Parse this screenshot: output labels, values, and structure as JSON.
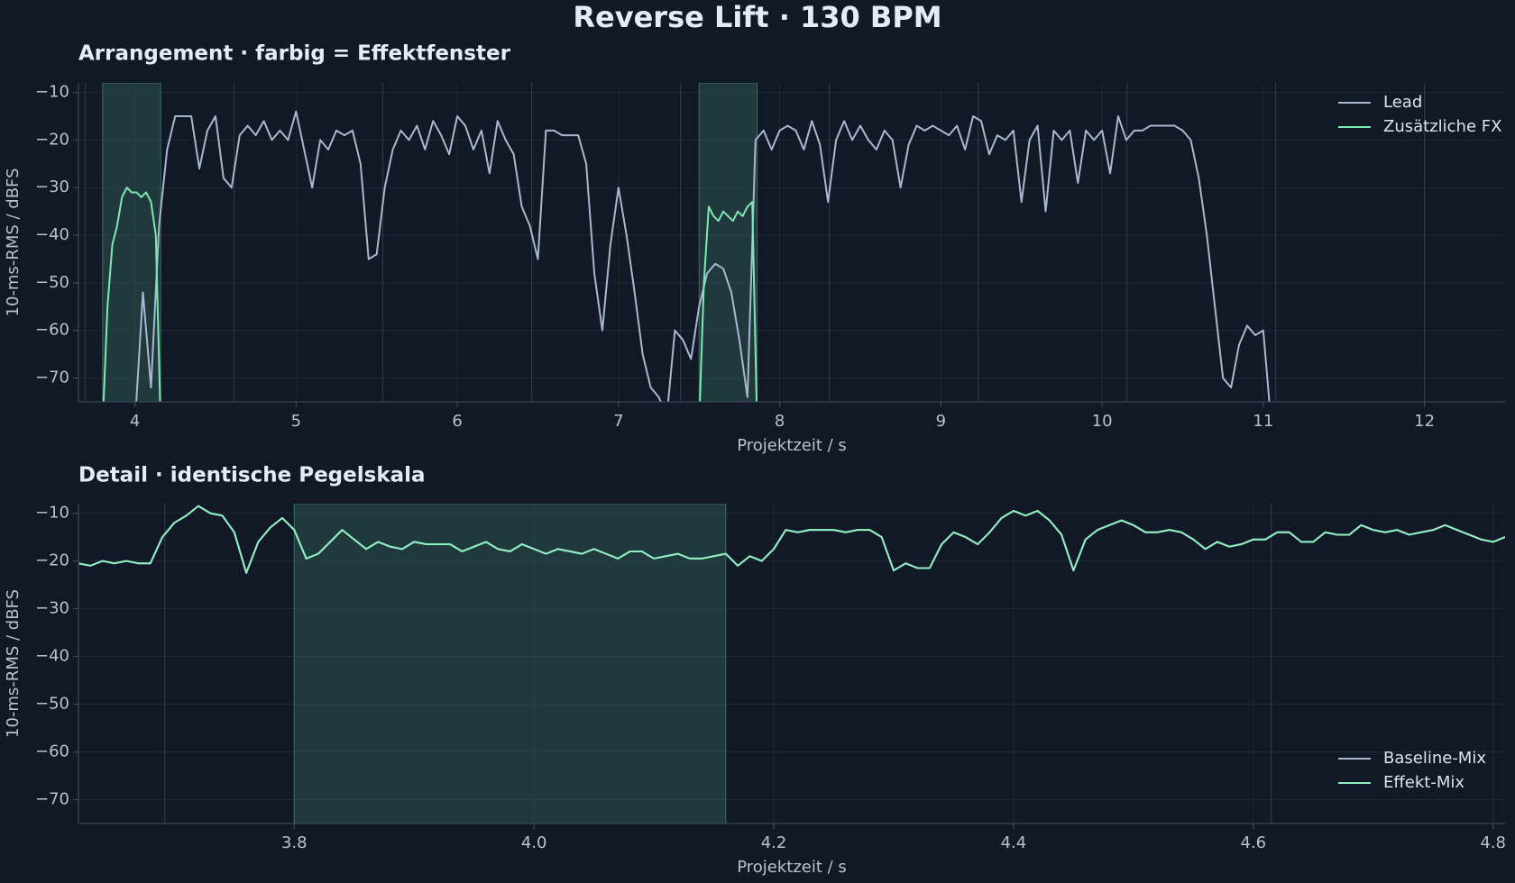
{
  "title": "Reverse Lift · 130 BPM",
  "chart_data": [
    {
      "type": "line",
      "title": "Arrangement · farbig = Effektfenster",
      "xlabel": "Projektzeit / s",
      "ylabel": "10-ms-RMS / dBFS",
      "xlim": [
        3.65,
        12.5
      ],
      "ylim": [
        -75,
        -8
      ],
      "xticks": [
        4,
        5,
        6,
        7,
        8,
        9,
        10,
        11,
        12
      ],
      "yticks": [
        {
          "value": -70,
          "label": "−70"
        },
        {
          "value": -60,
          "label": "−60"
        },
        {
          "value": -50,
          "label": "−50"
        },
        {
          "value": -40,
          "label": "−40"
        },
        {
          "value": -30,
          "label": "−30"
        },
        {
          "value": -20,
          "label": "−20"
        },
        {
          "value": -10,
          "label": "−10"
        }
      ],
      "grid": true,
      "legend": "upper right",
      "windows": [
        [
          3.8,
          4.16
        ],
        [
          7.5,
          7.86
        ]
      ],
      "beat_lines": [
        3.692,
        4.615,
        5.538,
        6.462,
        7.385,
        8.308,
        9.231,
        10.154,
        11.077,
        12.0
      ],
      "series": [
        {
          "name": "Lead",
          "color": "#a9b8cf",
          "x": [
            4,
            4.05,
            4.1,
            4.15,
            4.2,
            4.25,
            4.3,
            4.35,
            4.4,
            4.45,
            4.5,
            4.55,
            4.6,
            4.65,
            4.7,
            4.75,
            4.8,
            4.85,
            4.9,
            4.95,
            5,
            5.05,
            5.1,
            5.15,
            5.2,
            5.25,
            5.3,
            5.35,
            5.4,
            5.45,
            5.5,
            5.55,
            5.6,
            5.65,
            5.7,
            5.75,
            5.8,
            5.85,
            5.9,
            5.95,
            6,
            6.05,
            6.1,
            6.15,
            6.2,
            6.25,
            6.3,
            6.35,
            6.4,
            6.45,
            6.5,
            6.55,
            6.6,
            6.65,
            6.7,
            6.75,
            6.8,
            6.85,
            6.9,
            6.95,
            7,
            7.05,
            7.1,
            7.15,
            7.2,
            7.25,
            7.3,
            7.35,
            7.4,
            7.45,
            7.5,
            7.55,
            7.6,
            7.65,
            7.7,
            7.75,
            7.8,
            7.85,
            7.9,
            7.95,
            8,
            8.05,
            8.1,
            8.15,
            8.2,
            8.25,
            8.3,
            8.35,
            8.4,
            8.45,
            8.5,
            8.55,
            8.6,
            8.65,
            8.7,
            8.75,
            8.8,
            8.85,
            8.9,
            8.95,
            9,
            9.05,
            9.1,
            9.15,
            9.2,
            9.25,
            9.3,
            9.35,
            9.4,
            9.45,
            9.5,
            9.55,
            9.6,
            9.65,
            9.7,
            9.75,
            9.8,
            9.85,
            9.9,
            9.95,
            10,
            10.05,
            10.1,
            10.15,
            10.2,
            10.25,
            10.3,
            10.35,
            10.4,
            10.45,
            10.5,
            10.55,
            10.6,
            10.65,
            10.7,
            10.75,
            10.8,
            10.85,
            10.9,
            10.95,
            11,
            11.05
          ],
          "values": [
            -80,
            -52,
            -72,
            -38,
            -22,
            -15,
            -15,
            -15,
            -26,
            -18,
            -15,
            -28,
            -30,
            -19,
            -17,
            -19,
            -16,
            -20,
            -18,
            -20,
            -14,
            -22,
            -30,
            -20,
            -22,
            -18,
            -19,
            -18,
            -25,
            -45,
            -44,
            -30,
            -22,
            -18,
            -20,
            -17,
            -22,
            -16,
            -19,
            -23,
            -15,
            -17,
            -22,
            -18,
            -27,
            -16,
            -20,
            -23,
            -34,
            -38,
            -45,
            -18,
            -18,
            -19,
            -19,
            -19,
            -25,
            -48,
            -60,
            -42,
            -30,
            -40,
            -52,
            -65,
            -72,
            -74,
            -78,
            -60,
            -62,
            -66,
            -55,
            -48,
            -46,
            -47,
            -52,
            -62,
            -74,
            -20,
            -18,
            -22,
            -18,
            -17,
            -18,
            -22,
            -16,
            -21,
            -33,
            -20,
            -16,
            -20,
            -17,
            -20,
            -22,
            -18,
            -20,
            -30,
            -21,
            -17,
            -18,
            -17,
            -18,
            -19,
            -17,
            -22,
            -15,
            -16,
            -23,
            -19,
            -20,
            -18,
            -33,
            -20,
            -17,
            -35,
            -18,
            -20,
            -18,
            -29,
            -18,
            -20,
            -18,
            -27,
            -15,
            -20,
            -18,
            -18,
            -17,
            -17,
            -17,
            -17,
            -18,
            -20,
            -28,
            -40,
            -55,
            -70,
            -72,
            -63,
            -59,
            -61,
            -60,
            -80
          ]
        },
        {
          "name": "Zusätzliche FX",
          "color": "#7ee8b5",
          "x": [
            3.8,
            3.83,
            3.86,
            3.89,
            3.92,
            3.95,
            3.98,
            4.01,
            4.04,
            4.07,
            4.1,
            4.13,
            4.16,
            7.5,
            7.53,
            7.56,
            7.59,
            7.62,
            7.65,
            7.68,
            7.71,
            7.74,
            7.77,
            7.8,
            7.83,
            7.86
          ],
          "values": [
            -80,
            -55,
            -42,
            -38,
            -32,
            -30,
            -31,
            -31,
            -32,
            -31,
            -33,
            -40,
            -80,
            -80,
            -50,
            -34,
            -36,
            -37,
            -35,
            -36,
            -37,
            -35,
            -36,
            -34,
            -33,
            -80
          ]
        }
      ]
    },
    {
      "type": "line",
      "title": "Detail · identische Pegelskala",
      "xlabel": "Projektzeit / s",
      "ylabel": "10-ms-RMS / dBFS",
      "xlim": [
        3.62,
        4.81
      ],
      "ylim": [
        -75,
        -8
      ],
      "xticks": [
        3.8,
        {
          "value": 4,
          "label": "4.0"
        },
        4.2,
        4.4,
        4.6,
        4.8
      ],
      "yticks": [
        {
          "value": -70,
          "label": "−70"
        },
        {
          "value": -60,
          "label": "−60"
        },
        {
          "value": -50,
          "label": "−50"
        },
        {
          "value": -40,
          "label": "−40"
        },
        {
          "value": -30,
          "label": "−30"
        },
        {
          "value": -20,
          "label": "−20"
        },
        {
          "value": -10,
          "label": "−10"
        }
      ],
      "grid": true,
      "legend": "lower right",
      "windows": [
        [
          3.8,
          4.16
        ]
      ],
      "beat_lines": [
        3.692,
        4.615
      ],
      "x": [
        3.62,
        3.63,
        3.64,
        3.65,
        3.66,
        3.67,
        3.68,
        3.69,
        3.7,
        3.71,
        3.72,
        3.73,
        3.74,
        3.75,
        3.76,
        3.77,
        3.78,
        3.79,
        3.8,
        3.81,
        3.82,
        3.83,
        3.84,
        3.85,
        3.86,
        3.87,
        3.88,
        3.89,
        3.9,
        3.91,
        3.92,
        3.93,
        3.94,
        3.95,
        3.96,
        3.97,
        3.98,
        3.99,
        4,
        4.01,
        4.02,
        4.03,
        4.04,
        4.05,
        4.06,
        4.07,
        4.08,
        4.09,
        4.1,
        4.11,
        4.12,
        4.13,
        4.14,
        4.15,
        4.16,
        4.17,
        4.18,
        4.19,
        4.2,
        4.21,
        4.22,
        4.23,
        4.24,
        4.25,
        4.26,
        4.27,
        4.28,
        4.29,
        4.3,
        4.31,
        4.32,
        4.33,
        4.34,
        4.35,
        4.36,
        4.37,
        4.38,
        4.39,
        4.4,
        4.41,
        4.42,
        4.43,
        4.44,
        4.45,
        4.46,
        4.47,
        4.48,
        4.49,
        4.5,
        4.51,
        4.52,
        4.53,
        4.54,
        4.55,
        4.56,
        4.57,
        4.58,
        4.59,
        4.6,
        4.61,
        4.62,
        4.63,
        4.64,
        4.65,
        4.66,
        4.67,
        4.68,
        4.69,
        4.7,
        4.71,
        4.72,
        4.73,
        4.74,
        4.75,
        4.76,
        4.77,
        4.78,
        4.79,
        4.8,
        4.81
      ],
      "series": [
        {
          "name": "Baseline-Mix",
          "color": "#a9b8cf",
          "values": [
            -20.5,
            -21,
            -20,
            -20.5,
            -20,
            -20.5,
            -20.5,
            -15,
            -12,
            -10.5,
            -8.5,
            -10,
            -10.5,
            -14,
            -22.5,
            -16,
            -13,
            -11,
            -13.5,
            -19.5,
            -18.5,
            -16,
            -13.5,
            -15.5,
            -17.5,
            -16,
            -17,
            -17.5,
            -16,
            -16.5,
            -16.5,
            -16.5,
            -18,
            -17,
            -16,
            -17.5,
            -18,
            -16.5,
            -17.5,
            -18.5,
            -17.5,
            -18,
            -18.5,
            -17.5,
            -18.5,
            -19.5,
            -18,
            -18,
            -19.5,
            -19,
            -18.5,
            -19.5,
            -19.5,
            -19,
            -18.5,
            -21,
            -19,
            -20,
            -17.5,
            -13.5,
            -14,
            -13.5,
            -13.5,
            -13.5,
            -14,
            -13.5,
            -13.5,
            -15,
            -22,
            -20.5,
            -21.5,
            -21.5,
            -16.5,
            -14,
            -15,
            -16.5,
            -14,
            -11,
            -9.5,
            -10.5,
            -9.5,
            -11.5,
            -14.5,
            -22,
            -15.5,
            -13.5,
            -12.5,
            -11.5,
            -12.5,
            -14,
            -14,
            -13.5,
            -14,
            -15.5,
            -17.5,
            -16,
            -17,
            -16.5,
            -15.5,
            -15.5,
            -14,
            -14,
            -16,
            -16,
            -14,
            -14.5,
            -14.5,
            -12.5,
            -13.5,
            -14,
            -13.5,
            -14.5,
            -14,
            -13.5,
            -12.5,
            -13.5,
            -14.5,
            -15.5,
            -16,
            -15
          ]
        },
        {
          "name": "Effekt-Mix",
          "color": "#8ef0c0",
          "values": [
            -20.5,
            -21,
            -20,
            -20.5,
            -20,
            -20.5,
            -20.5,
            -15,
            -12,
            -10.5,
            -8.5,
            -10,
            -10.5,
            -14,
            -22.5,
            -16,
            -13,
            -11,
            -13.5,
            -19.5,
            -18.5,
            -16,
            -13.5,
            -15.5,
            -17.5,
            -16,
            -17,
            -17.5,
            -16,
            -16.5,
            -16.5,
            -16.5,
            -18,
            -17,
            -16,
            -17.5,
            -18,
            -16.5,
            -17.5,
            -18.5,
            -17.5,
            -18,
            -18.5,
            -17.5,
            -18.5,
            -19.5,
            -18,
            -18,
            -19.5,
            -19,
            -18.5,
            -19.5,
            -19.5,
            -19,
            -18.5,
            -21,
            -19,
            -20,
            -17.5,
            -13.5,
            -14,
            -13.5,
            -13.5,
            -13.5,
            -14,
            -13.5,
            -13.5,
            -15,
            -22,
            -20.5,
            -21.5,
            -21.5,
            -16.5,
            -14,
            -15,
            -16.5,
            -14,
            -11,
            -9.5,
            -10.5,
            -9.5,
            -11.5,
            -14.5,
            -22,
            -15.5,
            -13.5,
            -12.5,
            -11.5,
            -12.5,
            -14,
            -14,
            -13.5,
            -14,
            -15.5,
            -17.5,
            -16,
            -17,
            -16.5,
            -15.5,
            -15.5,
            -14,
            -14,
            -16,
            -16,
            -14,
            -14.5,
            -14.5,
            -12.5,
            -13.5,
            -14,
            -13.5,
            -14.5,
            -14,
            -13.5,
            -12.5,
            -13.5,
            -14.5,
            -15.5,
            -16,
            -15
          ]
        }
      ]
    }
  ]
}
